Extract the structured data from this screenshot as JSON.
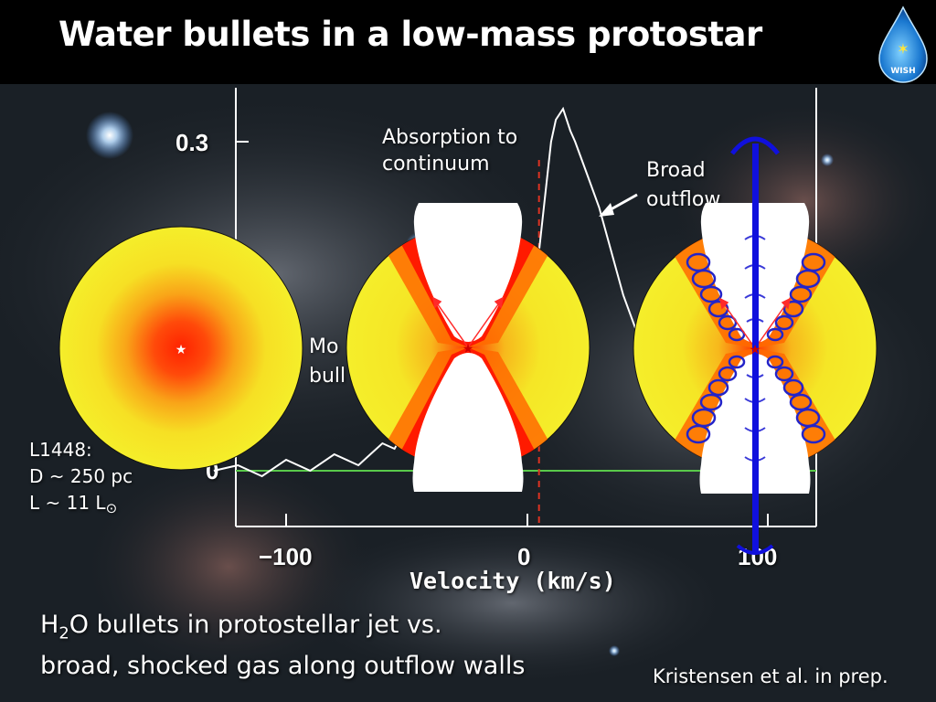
{
  "title": "Water bullets in a low-mass protostar",
  "logo": {
    "text": "WISH",
    "icon": "water-drop-star-logo"
  },
  "spectrum": {
    "y_tick_top": "0.3",
    "y_tick_zero": "0",
    "x_ticks": [
      "−100",
      "0",
      "100"
    ],
    "xlabel": "Velocity (km/s)",
    "annotation_absorption": [
      "Absorption to",
      "continuum"
    ],
    "annotation_broad": [
      "Broad",
      "outflow"
    ],
    "annotation_bullets": [
      "Mo",
      "bull"
    ]
  },
  "source_info": [
    "L1448:",
    "D ~ 250 pc",
    "L ~ 11 L",
    "⊙"
  ],
  "caption": [
    "H",
    "2",
    "O bullets in protostellar jet vs.",
    "broad, shocked gas along outflow walls"
  ],
  "credit": "Kristensen et al. in prep.",
  "chart_data": {
    "type": "line",
    "title": "",
    "xlabel": "Velocity (km/s)",
    "ylabel": "",
    "xlim": [
      -130,
      120
    ],
    "ylim": [
      -0.03,
      0.33
    ],
    "x": [
      -130,
      -120,
      -110,
      -100,
      -90,
      -80,
      -70,
      -65,
      -60,
      -55,
      -50,
      -45,
      -40,
      -35,
      -30,
      -25,
      -20,
      -15,
      -10,
      -5,
      0,
      5,
      8,
      10,
      12,
      15,
      18,
      20,
      25,
      30,
      35,
      40,
      45
    ],
    "y": [
      0.0,
      0.005,
      -0.005,
      0.01,
      0.0,
      0.015,
      0.005,
      0.015,
      0.025,
      0.02,
      0.04,
      0.05,
      0.055,
      0.07,
      0.08,
      0.09,
      0.1,
      0.11,
      0.13,
      0.15,
      0.165,
      0.2,
      0.26,
      0.3,
      0.32,
      0.33,
      0.31,
      0.3,
      0.27,
      0.24,
      0.2,
      0.16,
      0.13
    ],
    "reference_lines": {
      "baseline_y": 0,
      "dashed_x": 5
    },
    "colors": {
      "spectrum": "#ffffff",
      "baseline": "#59c94a",
      "dashed": "#dd3322"
    }
  },
  "colors": {
    "envelope_outer": "#f5ee2a",
    "envelope_inner": "#ff2200",
    "jet": "#1010dd",
    "cavity": "#ffffff"
  }
}
